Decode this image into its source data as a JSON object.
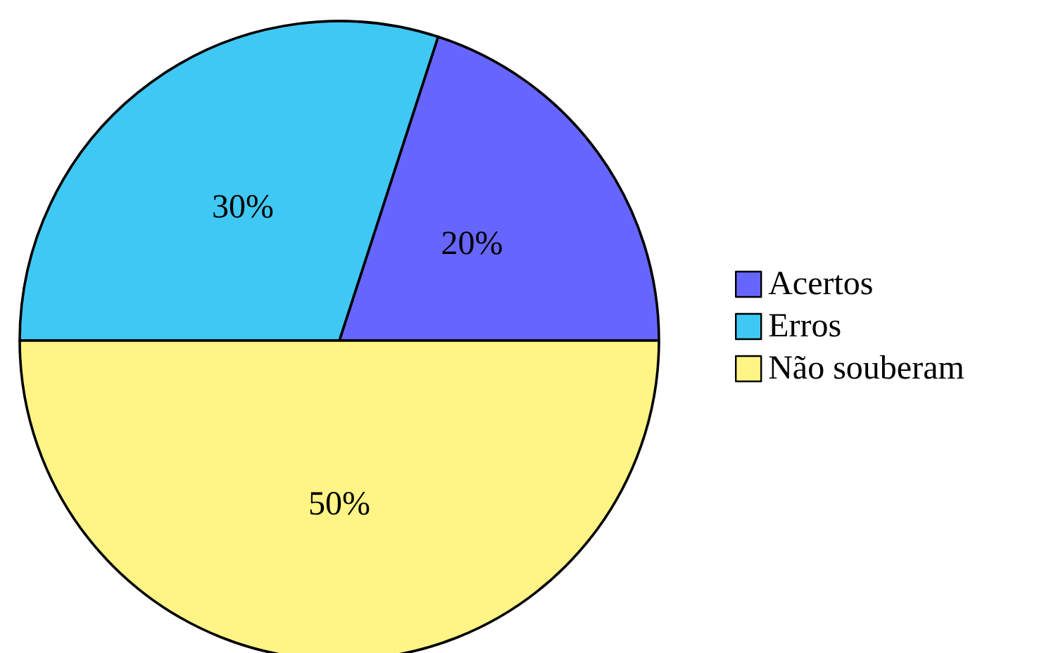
{
  "chart_data": {
    "type": "pie",
    "categories": [
      "Acertos",
      "Erros",
      "Não souberam"
    ],
    "values": [
      20,
      30,
      50
    ],
    "colors": [
      "#6666ff",
      "#40c8f4",
      "#fff485"
    ],
    "value_labels": [
      "20%",
      "30%",
      "50%"
    ],
    "legend": "right"
  }
}
